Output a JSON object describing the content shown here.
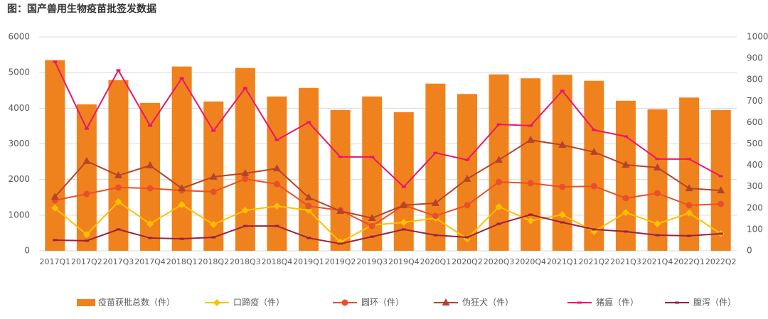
{
  "chart_data": {
    "type": "bar-line",
    "title": "图：国产兽用生物疫苗批签发数据",
    "categories": [
      "2017Q1",
      "2017Q2",
      "2017Q3",
      "2017Q4",
      "2018Q1",
      "2018Q2",
      "2018Q3",
      "2018Q4",
      "2019Q1",
      "2019Q2",
      "2019Q3",
      "2019Q4",
      "2020Q1",
      "2020Q2",
      "2020Q3",
      "2020Q4",
      "2021Q1",
      "2021Q2",
      "2021Q3",
      "2021Q4",
      "2022Q1",
      "2022Q2"
    ],
    "series": [
      {
        "name": "疫苗获批总数（件）",
        "type": "bar",
        "color": "#f0821e",
        "values": [
          5350,
          4110,
          4790,
          4150,
          5170,
          4190,
          5130,
          4330,
          4570,
          3950,
          4330,
          3890,
          4690,
          4400,
          4950,
          4840,
          4940,
          4770,
          4210,
          3970,
          4300,
          3950
        ]
      },
      {
        "name": "口蹄疫（件）",
        "type": "line",
        "axis": "y2",
        "marker": "diamond",
        "color": "#ffc000",
        "values": [
          200,
          76,
          229,
          126,
          216,
          123,
          189,
          209,
          189,
          40,
          120,
          133,
          153,
          56,
          206,
          140,
          169,
          90,
          179,
          126,
          176,
          80
        ]
      },
      {
        "name": "圆环（件）",
        "type": "line",
        "axis": "y2",
        "marker": "circle",
        "color": "#e8502a",
        "values": [
          236,
          266,
          296,
          292,
          282,
          276,
          336,
          312,
          209,
          189,
          116,
          213,
          163,
          213,
          322,
          316,
          299,
          302,
          246,
          269,
          213,
          219
        ]
      },
      {
        "name": "伪狂犬（件）",
        "type": "line",
        "axis": "y2",
        "marker": "triangle",
        "color": "#b5432c",
        "values": [
          252,
          419,
          352,
          399,
          292,
          346,
          362,
          385,
          249,
          186,
          153,
          213,
          223,
          336,
          425,
          518,
          495,
          462,
          402,
          389,
          292,
          282
        ]
      },
      {
        "name": "猪瘟（件）",
        "type": "line",
        "axis": "y2",
        "marker": "dash",
        "color": "#e8176b",
        "values": [
          884,
          571,
          844,
          585,
          807,
          561,
          761,
          518,
          601,
          439,
          439,
          299,
          458,
          425,
          591,
          585,
          748,
          565,
          535,
          429,
          429,
          349
        ]
      },
      {
        "name": "腹泻（件）",
        "type": "line",
        "axis": "y2",
        "marker": "dash",
        "color": "#9b2042",
        "values": [
          50,
          47,
          100,
          60,
          56,
          63,
          116,
          116,
          60,
          33,
          66,
          100,
          73,
          63,
          126,
          169,
          133,
          100,
          90,
          73,
          70,
          80
        ]
      }
    ],
    "ylim": [
      0,
      6000
    ],
    "yticks": [
      0,
      1000,
      2000,
      3000,
      4000,
      5000,
      6000
    ],
    "y2lim": [
      0,
      1000
    ],
    "y2ticks": [
      0,
      100,
      200,
      300,
      400,
      500,
      600,
      700,
      800,
      900,
      1000
    ],
    "grid": true,
    "legend": "bottom"
  }
}
